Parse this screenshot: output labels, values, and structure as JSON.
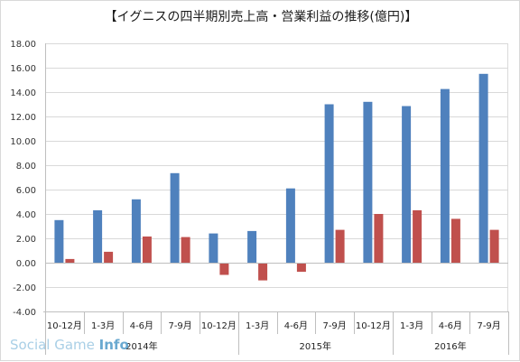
{
  "chart_data": {
    "type": "bar",
    "title": "【イグニスの四半期別売上高・営業利益の推移(億円)】",
    "categories": [
      "10-12月",
      "1-3月",
      "4-6月",
      "7-9月",
      "10-12月",
      "1-3月",
      "4-6月",
      "7-9月",
      "10-12月",
      "1-3月",
      "4-6月",
      "7-9月"
    ],
    "year_groups": [
      {
        "label": "2014年",
        "start": 0,
        "end": 4
      },
      {
        "label": "2015年",
        "start": 5,
        "end": 8
      },
      {
        "label": "2016年",
        "start": 9,
        "end": 11
      }
    ],
    "series": [
      {
        "color": "#4f81bd",
        "values": [
          3.5,
          4.3,
          5.2,
          7.35,
          2.4,
          2.6,
          6.1,
          13.0,
          13.2,
          12.85,
          14.25,
          15.5
        ]
      },
      {
        "color": "#c0504d",
        "values": [
          0.3,
          0.9,
          2.15,
          2.1,
          -1.0,
          -1.45,
          -0.75,
          2.7,
          4.0,
          4.3,
          3.6,
          2.7
        ]
      }
    ],
    "ylim": [
      -4,
      18
    ],
    "yticks": [
      "18.00",
      "16.00",
      "14.00",
      "12.00",
      "10.00",
      "8.00",
      "6.00",
      "4.00",
      "2.00",
      "0.00",
      "-2.00",
      "-4.00"
    ],
    "grid": true,
    "legend": "none"
  },
  "watermark": {
    "part1": "Social Game ",
    "part2": "Info"
  }
}
